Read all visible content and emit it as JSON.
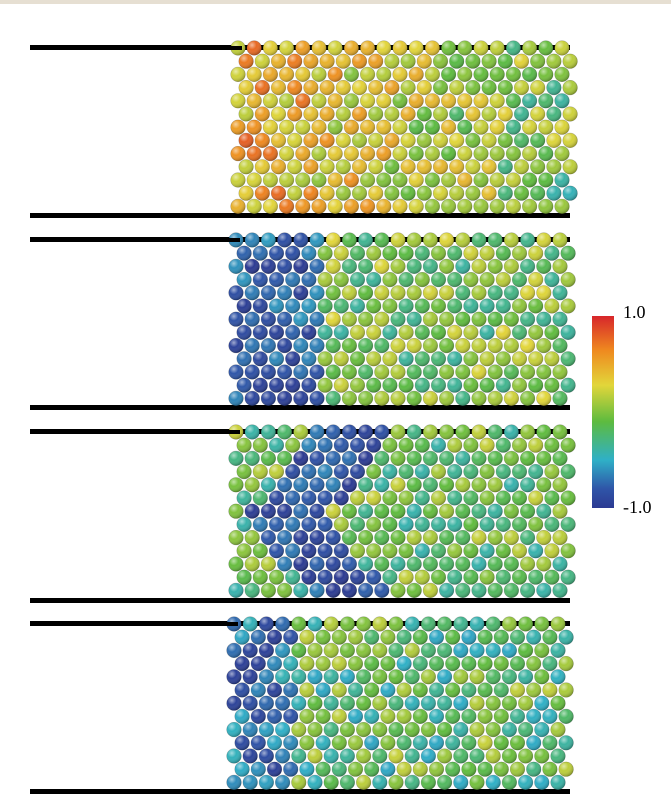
{
  "colorbar": {
    "max_label": "1.0",
    "min_label": "-1.0",
    "stops": [
      "#d7262b",
      "#ef8a1f",
      "#e2d63a",
      "#5dbb3f",
      "#2fb0c7",
      "#2f55a8",
      "#2c3a92"
    ]
  },
  "wall_color": "#000000",
  "panels": [
    {
      "id": "panel-1",
      "hue": "warm"
    },
    {
      "id": "panel-2",
      "hue": "cool-left"
    },
    {
      "id": "panel-3",
      "hue": "cool-v"
    },
    {
      "id": "panel-4",
      "hue": "cool-spread"
    }
  ]
}
